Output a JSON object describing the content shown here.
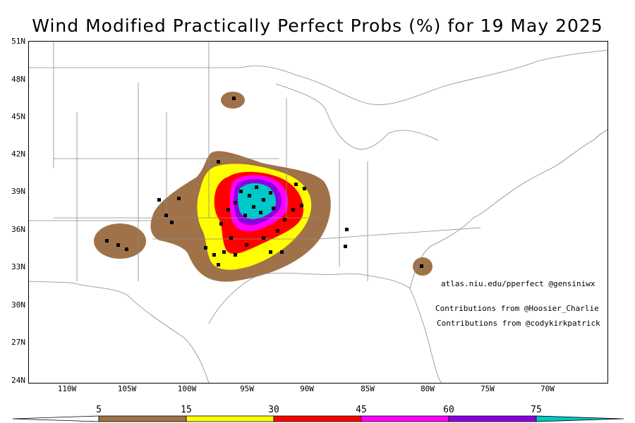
{
  "title": "Wind Modified Practically Perfect Probs (%) for 19 May 2025",
  "lat_labels": [
    "51N",
    "48N",
    "45N",
    "42N",
    "39N",
    "36N",
    "33N",
    "30N",
    "27N",
    "24N"
  ],
  "lon_labels": [
    "110W",
    "105W",
    "100W",
    "95W",
    "90W",
    "85W",
    "80W",
    "75W",
    "70W"
  ],
  "credits": {
    "site": "atlas.niu.edu/pperfect @gensiniwx",
    "contrib1": "Contributions from @Hoosier_Charlie",
    "contrib2": "Contributions from @codykirkpatrick"
  },
  "colorbar": {
    "levels": [
      "5",
      "15",
      "30",
      "45",
      "60",
      "75"
    ],
    "colors": [
      "#a0724a",
      "#ffff00",
      "#ff0000",
      "#ff00ff",
      "#8a00e0",
      "#00c8c8"
    ]
  }
}
